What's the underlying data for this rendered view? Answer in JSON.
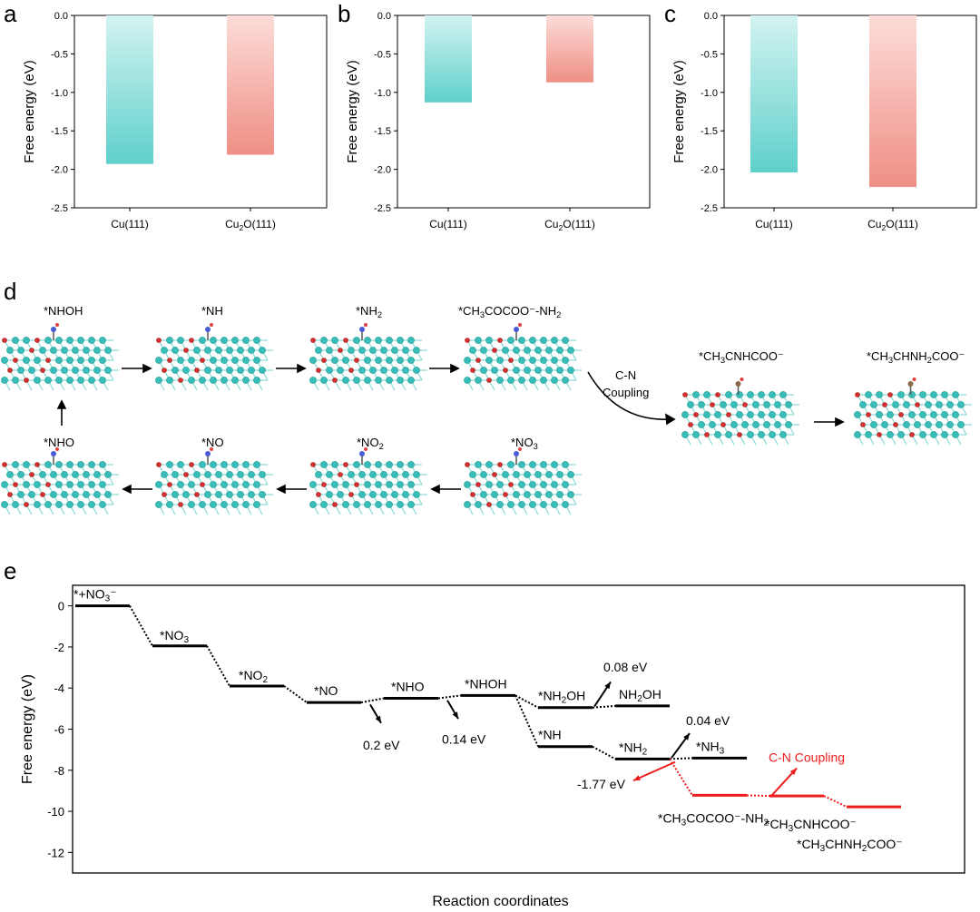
{
  "chart_data": [
    {
      "panel": "a",
      "type": "bar",
      "ylabel": "Free energy (eV)",
      "ylim": [
        -2.5,
        0.0
      ],
      "yticks": [
        "0.0",
        "-0.5",
        "-1.0",
        "-1.5",
        "-2.0",
        "-2.5"
      ],
      "categories": [
        "Cu(111)",
        "Cu2O(111)"
      ],
      "values": [
        -1.93,
        -1.81
      ]
    },
    {
      "panel": "b",
      "type": "bar",
      "ylabel": "Free energy (eV)",
      "ylim": [
        -2.5,
        0.0
      ],
      "yticks": [
        "0.0",
        "-0.5",
        "-1.0",
        "-1.5",
        "-2.0",
        "-2.5"
      ],
      "categories": [
        "Cu(111)",
        "Cu2O(111)"
      ],
      "values": [
        -1.13,
        -0.87
      ]
    },
    {
      "panel": "c",
      "type": "bar",
      "ylabel": "Free energy (eV)",
      "ylim": [
        -2.5,
        0.0
      ],
      "yticks": [
        "0.0",
        "-0.5",
        "-1.0",
        "-1.5",
        "-2.0",
        "-2.5"
      ],
      "categories": [
        "Cu(111)",
        "Cu2O(111)"
      ],
      "values": [
        -2.04,
        -2.23
      ]
    },
    {
      "panel": "e",
      "type": "line",
      "title": "",
      "xlabel": "Reaction coordinates",
      "ylabel": "Free energy (eV)",
      "ylim": [
        -13,
        1
      ],
      "yticks": [
        "0",
        "-2",
        "-4",
        "-6",
        "-8",
        "-10",
        "-12"
      ],
      "levels": [
        {
          "label": "*+NO3⁻",
          "x": 1,
          "y": 0.0,
          "color": "black"
        },
        {
          "label": "*NO3",
          "x": 2,
          "y": -1.95,
          "color": "black"
        },
        {
          "label": "*NO2",
          "x": 3,
          "y": -3.9,
          "color": "black"
        },
        {
          "label": "*NO",
          "x": 4,
          "y": -4.7,
          "color": "black"
        },
        {
          "label": "*NHO",
          "x": 5,
          "y": -4.5,
          "color": "black"
        },
        {
          "label": "*NHOH",
          "x": 6,
          "y": -4.36,
          "color": "black"
        },
        {
          "label": "*NH2OH",
          "x": 7,
          "y": -4.95,
          "color": "black"
        },
        {
          "label": "NH2OH",
          "x": 8,
          "y": -4.87,
          "color": "black"
        },
        {
          "label": "*NH",
          "x": 7,
          "y": -6.85,
          "color": "black"
        },
        {
          "label": "*NH2",
          "x": 8,
          "y": -7.45,
          "color": "black"
        },
        {
          "label": "*NH3",
          "x": 9,
          "y": -7.41,
          "color": "black"
        },
        {
          "label": "*CH3COCOO⁻-NH2",
          "x": 9,
          "y": -9.22,
          "color": "red"
        },
        {
          "label": "*CH3CNHCOO⁻",
          "x": 10,
          "y": -9.25,
          "color": "red"
        },
        {
          "label": "*CH3CHNH2COO⁻",
          "x": 11,
          "y": -9.78,
          "color": "red"
        }
      ],
      "annotations": [
        "0.2 eV",
        "0.14 eV",
        "0.08 eV",
        "0.04 eV",
        "-1.77 eV",
        "C-N Coupling"
      ]
    }
  ],
  "panel_letters": {
    "a": "a",
    "b": "b",
    "c": "c",
    "d": "d",
    "e": "e"
  },
  "scheme_d": {
    "top_labels": [
      "*NHOH",
      "*NH",
      "*NH2",
      "*CH3COCOO⁻-NH2"
    ],
    "bottom_labels": [
      "*NHO",
      "*NO",
      "*NO2",
      "*NO3"
    ],
    "right_labels": [
      "*CH3CNHCOO⁻",
      "*CH3CHNH2COO⁻"
    ],
    "arrow_label_line1": "C-N",
    "arrow_label_line2": "Coupling"
  },
  "colors": {
    "teal": "#5fd0cb",
    "teal_light": "#cdf2f0",
    "salmon": "#f0938a",
    "salmon_light": "#fbd7d3",
    "red": "#ee1c1c"
  }
}
